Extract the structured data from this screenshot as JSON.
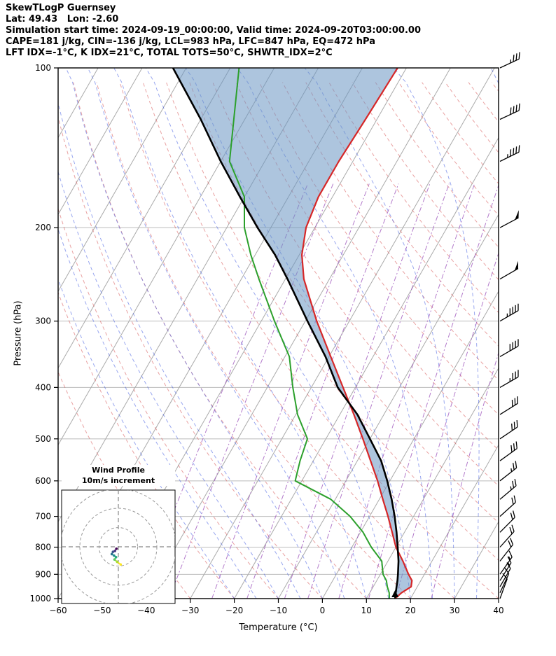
{
  "header": {
    "title": "SkewTLogP Guernsey",
    "location_line": "Lat: 49.43   Lon: -2.60",
    "time_line": "Simulation start time: 2024-09-19_00:00:00, Valid time: 2024-09-20T03:00:00.00",
    "indices_line1": "CAPE=181 j/kg, CIN=-136 j/kg, LCL=983 hPa, LFC=847 hPa, EQ=472 hPa",
    "indices_line2": "LFT IDX=-1°C, K IDX=21°C, TOTAL TOTS=50°C, SHWTR_IDX=2°C"
  },
  "axes": {
    "x_label": "Temperature (°C)",
    "y_label": "Pressure (hPa)"
  },
  "inset": {
    "title_line1": "Wind Profile",
    "title_line2": "10m/s increment"
  },
  "chart_data": {
    "type": "line",
    "subtype": "skewt_logp_sounding",
    "title": "SkewTLogP Guernsey",
    "xlabel": "Temperature (°C)",
    "ylabel": "Pressure (hPa)",
    "xlim": [
      -60,
      40
    ],
    "ylim": [
      1000,
      100
    ],
    "x_ticks": [
      -60,
      -50,
      -40,
      -30,
      -20,
      -10,
      0,
      10,
      20,
      30,
      40
    ],
    "y_ticks": [
      100,
      200,
      300,
      400,
      500,
      600,
      700,
      800,
      900,
      1000
    ],
    "grid": true,
    "legend": "none",
    "indices": {
      "CAPE_jkg": 181,
      "CIN_jkg": -136,
      "LCL_hPa": 983,
      "LFC_hPa": 847,
      "EQ_hPa": 472,
      "LFT_IDX_C": -1,
      "K_IDX_C": 21,
      "TOTAL_TOTS_C": 50,
      "SHWTR_IDX_C": 2,
      "lat": 49.43,
      "lon": -2.6
    },
    "pressure_hPa": [
      1000,
      975,
      950,
      925,
      900,
      850,
      800,
      750,
      700,
      650,
      600,
      550,
      500,
      450,
      400,
      350,
      300,
      250,
      225,
      200,
      175,
      150,
      125,
      100
    ],
    "temperature_C": [
      16.5,
      17.2,
      18.6,
      18.0,
      16.4,
      13.4,
      10.0,
      7.2,
      4.2,
      0.8,
      -2.8,
      -7.0,
      -11.6,
      -16.8,
      -22.8,
      -29.6,
      -37.4,
      -45.8,
      -49.4,
      -52.0,
      -53.2,
      -53.2,
      -52.6,
      -52.0
    ],
    "dewpoint_C": [
      15.2,
      14.4,
      13.2,
      12.2,
      10.6,
      8.6,
      4.4,
      0.6,
      -4.4,
      -11.0,
      -21.5,
      -23.0,
      -24.2,
      -29.6,
      -34.2,
      -39.0,
      -47.0,
      -56.0,
      -61.0,
      -66.0,
      -70.0,
      -78.0,
      -82.5,
      -88.0
    ],
    "parcel_C": [
      16.5,
      15.9,
      15.3,
      14.7,
      14.0,
      12.4,
      10.4,
      8.2,
      5.7,
      2.8,
      -0.6,
      -4.6,
      -10.0,
      -16.0,
      -24.0,
      -30.8,
      -39.5,
      -49.5,
      -55.5,
      -63.0,
      -71.0,
      -80.0,
      -90.0,
      -103.0
    ],
    "winds": [
      {
        "p": 1000,
        "dir_deg": 200,
        "spd_kt": 8
      },
      {
        "p": 975,
        "dir_deg": 205,
        "spd_kt": 10
      },
      {
        "p": 950,
        "dir_deg": 210,
        "spd_kt": 12
      },
      {
        "p": 925,
        "dir_deg": 212,
        "spd_kt": 14
      },
      {
        "p": 900,
        "dir_deg": 215,
        "spd_kt": 15
      },
      {
        "p": 850,
        "dir_deg": 218,
        "spd_kt": 18
      },
      {
        "p": 800,
        "dir_deg": 222,
        "spd_kt": 20
      },
      {
        "p": 750,
        "dir_deg": 225,
        "spd_kt": 20
      },
      {
        "p": 700,
        "dir_deg": 228,
        "spd_kt": 22
      },
      {
        "p": 650,
        "dir_deg": 230,
        "spd_kt": 25
      },
      {
        "p": 600,
        "dir_deg": 232,
        "spd_kt": 25
      },
      {
        "p": 550,
        "dir_deg": 234,
        "spd_kt": 28
      },
      {
        "p": 500,
        "dir_deg": 236,
        "spd_kt": 30
      },
      {
        "p": 450,
        "dir_deg": 238,
        "spd_kt": 32
      },
      {
        "p": 400,
        "dir_deg": 240,
        "spd_kt": 35
      },
      {
        "p": 350,
        "dir_deg": 240,
        "spd_kt": 40
      },
      {
        "p": 300,
        "dir_deg": 240,
        "spd_kt": 45
      },
      {
        "p": 250,
        "dir_deg": 240,
        "spd_kt": 50
      },
      {
        "p": 200,
        "dir_deg": 242,
        "spd_kt": 50
      },
      {
        "p": 150,
        "dir_deg": 244,
        "spd_kt": 45
      },
      {
        "p": 125,
        "dir_deg": 245,
        "spd_kt": 40
      },
      {
        "p": 100,
        "dir_deg": 245,
        "spd_kt": 35
      }
    ],
    "hodograph": {
      "rings_ms": [
        10,
        20,
        30
      ],
      "points_uv_ms": [
        {
          "u": -1.0,
          "v": -1.0,
          "color": "#440154"
        },
        {
          "u": -1.8,
          "v": -2.2,
          "color": "#46327e"
        },
        {
          "u": -2.8,
          "v": -2.6,
          "color": "#3b518b"
        },
        {
          "u": -3.4,
          "v": -3.8,
          "color": "#2c718e"
        },
        {
          "u": -2.2,
          "v": -4.6,
          "color": "#21908d"
        },
        {
          "u": -1.2,
          "v": -5.4,
          "color": "#27ad81"
        },
        {
          "u": -2.0,
          "v": -6.6,
          "color": "#5cc863"
        },
        {
          "u": -0.6,
          "v": -7.8,
          "color": "#aadc32"
        },
        {
          "u": 1.2,
          "v": -9.2,
          "color": "#fde725"
        }
      ]
    },
    "colors": {
      "temperature": "#d62728",
      "dewpoint": "#2ca02c",
      "parcel": "#000000",
      "cape_fill": "rgba(105,150,195,0.55)",
      "dry_adiabat": "rgba(215,85,85,0.55)",
      "moist_adiabat": "rgba(70,95,225,0.55)",
      "mixing_ratio": "rgba(160,90,190,0.8)",
      "isotherm": "#aaaaaa",
      "pressure_grid": "#bbbbbb",
      "barb": "#000000"
    },
    "skew_deg_c_per_ln_p": 30,
    "mixing_ratio_lines_gkg": [
      0.1,
      0.2,
      0.5,
      1,
      2,
      3,
      5,
      8,
      12,
      20
    ],
    "dry_adiabats_theta_C": {
      "start": -30,
      "end": 200,
      "step": 10
    },
    "moist_adiabats_T0_C": {
      "start": -20,
      "end": 40,
      "step": 5
    }
  }
}
